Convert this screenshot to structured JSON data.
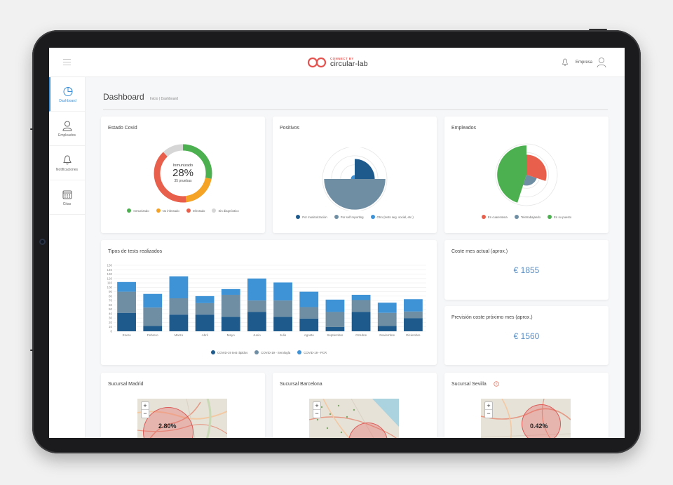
{
  "header": {
    "logo_small": "CONNECT BY",
    "logo_main": "circular-lab",
    "company": "Empresa"
  },
  "sidebar": {
    "items": [
      {
        "label": "Dashboard",
        "icon": "pie-chart-icon",
        "active": true
      },
      {
        "label": "Empleados",
        "icon": "user-icon"
      },
      {
        "label": "Notificaciones",
        "icon": "bell-icon"
      },
      {
        "label": "Citas",
        "icon": "calendar-icon"
      }
    ]
  },
  "page": {
    "title": "Dashboard",
    "breadcrumb": "Inicio  |  Dashboard"
  },
  "cards": {
    "estado_covid": {
      "title": "Estado Covid",
      "center_label": "Inmunizado",
      "center_value": "28%",
      "center_sub": "35 pruebas"
    },
    "positivos": {
      "title": "Positivos"
    },
    "empleados": {
      "title": "Empleados"
    },
    "tests": {
      "title": "Tipos de tests realizados"
    },
    "coste_actual": {
      "title": "Coste mes actual (aprox.)",
      "value": "€ 1855"
    },
    "prevision": {
      "title": "Previsión coste próximo mes (aprox.)",
      "value": "€ 1560"
    },
    "madrid": {
      "title": "Sucursal Madrid",
      "pct": "2.80%"
    },
    "barcelona": {
      "title": "Sucursal Barcelona"
    },
    "sevilla": {
      "title": "Sucursal Sevilla",
      "pct": "0.42%"
    }
  },
  "map_controls": {
    "zoom_in": "+",
    "zoom_out": "−"
  },
  "colors": {
    "accent": "#3b8ed6",
    "green": "#4caf50",
    "orange": "#f4a325",
    "red": "#e8604c",
    "grey": "#d6d6d6",
    "dark_blue": "#1f5a8c",
    "steel": "#6f8ea3",
    "light_blue": "#3e92d6"
  },
  "chart_data": [
    {
      "type": "pie",
      "chart": "donut",
      "labels": [
        "Inmunizado",
        "No infectado",
        "Infectado",
        "Sin diagnóstico"
      ],
      "values": [
        28,
        20,
        40,
        12
      ],
      "colors": [
        "#4caf50",
        "#f4a325",
        "#e8604c",
        "#d6d6d6"
      ]
    },
    {
      "type": "pie",
      "chart": "polar-area",
      "labels": [
        "Por monitorización",
        "Por self reporting",
        "Otro (tests seg. social, etc.)"
      ],
      "angles": [
        25,
        50,
        25
      ],
      "radii": [
        0.62,
        0.95,
        0.12
      ],
      "colors": [
        "#1f5a8c",
        "#6f8ea3",
        "#3e92d6"
      ]
    },
    {
      "type": "pie",
      "chart": "polar-area",
      "labels": [
        "En cuarentena",
        "Teletrabajando",
        "En su puesto"
      ],
      "angles": [
        30,
        25,
        45
      ],
      "radii": [
        0.65,
        0.35,
        0.95
      ],
      "colors": [
        "#e8604c",
        "#6f8ea3",
        "#4caf50"
      ]
    },
    {
      "type": "bar",
      "stacked": true,
      "categories": [
        "Enero",
        "Febrero",
        "Marzo",
        "Abril",
        "Mayo",
        "Junio",
        "Julio",
        "Agosto",
        "Septiembre",
        "Octubre",
        "Noviembre",
        "Diciembre"
      ],
      "series": [
        {
          "name": "COVID-19 test rápidos",
          "values": [
            42,
            12,
            38,
            38,
            33,
            44,
            33,
            29,
            10,
            44,
            12,
            30
          ],
          "color": "#1f5a8c"
        },
        {
          "name": "COVID-19 - Serología",
          "values": [
            48,
            42,
            37,
            26,
            50,
            26,
            37,
            26,
            34,
            27,
            30,
            15
          ],
          "color": "#6f8ea3"
        },
        {
          "name": "COVID-19 - PCR",
          "values": [
            22,
            31,
            50,
            16,
            13,
            50,
            41,
            35,
            28,
            12,
            23,
            28
          ],
          "color": "#3e92d6"
        }
      ],
      "ylim": [
        0,
        150
      ],
      "yticks": [
        0,
        10,
        20,
        30,
        40,
        50,
        60,
        70,
        80,
        90,
        100,
        110,
        120,
        130,
        140,
        150
      ]
    }
  ]
}
